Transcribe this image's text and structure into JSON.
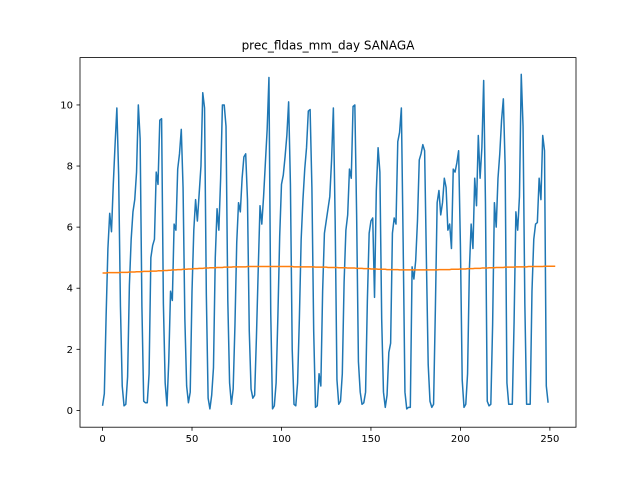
{
  "chart_data": {
    "type": "line",
    "title": "prec_fldas_mm_day SANAGA",
    "xlabel": "",
    "ylabel": "",
    "xlim": [
      -12.6,
      264.6
    ],
    "ylim": [
      -0.55,
      11.55
    ],
    "xticks": [
      0,
      50,
      100,
      150,
      200,
      250
    ],
    "yticks": [
      0,
      2,
      4,
      6,
      8,
      10
    ],
    "grid": false,
    "series": [
      {
        "color": "#1f77b4",
        "values": [
          0.15,
          0.55,
          3.1,
          5.3,
          6.45,
          5.85,
          7.4,
          8.7,
          9.9,
          7.7,
          3.4,
          0.8,
          0.15,
          0.2,
          1.1,
          4.1,
          5.6,
          6.5,
          6.9,
          7.8,
          10.0,
          8.9,
          3.4,
          0.3,
          0.25,
          0.25,
          1.2,
          5.0,
          5.4,
          5.6,
          7.8,
          7.4,
          9.5,
          9.55,
          3.5,
          0.9,
          0.15,
          1.6,
          3.9,
          3.6,
          6.1,
          5.9,
          7.9,
          8.4,
          9.2,
          7.3,
          3.0,
          0.8,
          0.25,
          0.6,
          3.9,
          5.9,
          6.9,
          6.2,
          7.1,
          8.0,
          10.4,
          9.9,
          3.8,
          0.4,
          0.05,
          0.5,
          1.4,
          5.0,
          6.6,
          5.9,
          7.6,
          10.0,
          10.0,
          9.3,
          3.6,
          0.9,
          0.2,
          0.7,
          2.8,
          5.5,
          6.8,
          6.5,
          7.6,
          8.3,
          8.4,
          6.9,
          2.6,
          0.7,
          0.4,
          0.5,
          2.4,
          4.6,
          6.7,
          6.1,
          7.0,
          8.1,
          9.2,
          10.9,
          3.2,
          0.05,
          0.15,
          0.9,
          3.1,
          5.7,
          7.4,
          7.7,
          8.3,
          9.0,
          10.1,
          7.4,
          2.0,
          0.2,
          0.15,
          0.9,
          3.0,
          5.6,
          6.9,
          7.9,
          8.6,
          9.8,
          9.85,
          7.3,
          2.6,
          0.1,
          0.15,
          1.2,
          0.8,
          3.9,
          5.8,
          6.2,
          6.6,
          7.0,
          8.2,
          9.9,
          6.2,
          1.0,
          0.2,
          0.3,
          1.2,
          4.2,
          5.9,
          6.4,
          7.9,
          7.6,
          9.95,
          10.0,
          6.4,
          1.6,
          0.6,
          0.2,
          0.25,
          0.6,
          3.6,
          5.8,
          6.2,
          6.3,
          3.7,
          7.2,
          8.6,
          7.8,
          3.0,
          0.6,
          0.1,
          0.5,
          1.9,
          2.2,
          5.8,
          6.3,
          6.1,
          8.8,
          9.1,
          9.9,
          5.5,
          0.6,
          0.05,
          0.1,
          0.1,
          4.7,
          4.3,
          4.9,
          6.2,
          8.2,
          8.4,
          8.7,
          8.5,
          4.9,
          1.5,
          0.3,
          0.1,
          0.2,
          3.3,
          6.8,
          7.2,
          6.4,
          6.8,
          7.6,
          7.3,
          5.9,
          6.1,
          5.3,
          7.9,
          7.8,
          8.1,
          8.5,
          5.4,
          1.0,
          0.1,
          0.2,
          1.2,
          4.6,
          6.1,
          5.3,
          7.6,
          6.7,
          9.0,
          7.6,
          8.6,
          10.8,
          6.8,
          0.3,
          0.15,
          0.2,
          2.8,
          6.8,
          6.0,
          7.6,
          8.4,
          9.5,
          10.2,
          8.0,
          0.9,
          0.2,
          0.2,
          0.2,
          2.9,
          6.5,
          5.9,
          7.0,
          11.0,
          9.3,
          3.5,
          0.2,
          0.2,
          0.2,
          3.9,
          5.6,
          6.1,
          6.15,
          7.6,
          6.9,
          9.0,
          8.5,
          0.8,
          0.25
        ]
      },
      {
        "color": "#ff7f0e",
        "values": [
          4.5,
          4.5,
          4.5,
          4.51,
          4.51,
          4.51,
          4.51,
          4.51,
          4.51,
          4.51,
          4.52,
          4.52,
          4.52,
          4.52,
          4.52,
          4.53,
          4.53,
          4.53,
          4.53,
          4.54,
          4.54,
          4.54,
          4.54,
          4.55,
          4.55,
          4.55,
          4.55,
          4.56,
          4.56,
          4.56,
          4.56,
          4.57,
          4.57,
          4.57,
          4.58,
          4.58,
          4.58,
          4.59,
          4.59,
          4.6,
          4.6,
          4.6,
          4.61,
          4.61,
          4.61,
          4.62,
          4.62,
          4.62,
          4.63,
          4.63,
          4.63,
          4.64,
          4.64,
          4.64,
          4.65,
          4.65,
          4.65,
          4.66,
          4.66,
          4.66,
          4.67,
          4.67,
          4.67,
          4.67,
          4.68,
          4.68,
          4.68,
          4.68,
          4.69,
          4.69,
          4.69,
          4.69,
          4.69,
          4.7,
          4.7,
          4.7,
          4.7,
          4.7,
          4.7,
          4.7,
          4.7,
          4.71,
          4.71,
          4.71,
          4.71,
          4.71,
          4.71,
          4.71,
          4.71,
          4.71,
          4.71,
          4.71,
          4.71,
          4.71,
          4.71,
          4.71,
          4.71,
          4.71,
          4.71,
          4.71,
          4.71,
          4.71,
          4.71,
          4.71,
          4.71,
          4.71,
          4.71,
          4.7,
          4.7,
          4.7,
          4.7,
          4.7,
          4.7,
          4.7,
          4.7,
          4.7,
          4.7,
          4.7,
          4.7,
          4.69,
          4.69,
          4.69,
          4.69,
          4.69,
          4.69,
          4.69,
          4.68,
          4.68,
          4.68,
          4.68,
          4.68,
          4.68,
          4.67,
          4.67,
          4.67,
          4.67,
          4.67,
          4.66,
          4.66,
          4.66,
          4.66,
          4.66,
          4.65,
          4.65,
          4.65,
          4.65,
          4.64,
          4.64,
          4.64,
          4.64,
          4.63,
          4.63,
          4.63,
          4.63,
          4.62,
          4.62,
          4.62,
          4.62,
          4.62,
          4.61,
          4.61,
          4.61,
          4.61,
          4.61,
          4.61,
          4.61,
          4.6,
          4.6,
          4.6,
          4.6,
          4.6,
          4.6,
          4.6,
          4.6,
          4.6,
          4.6,
          4.6,
          4.6,
          4.6,
          4.6,
          4.6,
          4.6,
          4.6,
          4.6,
          4.6,
          4.6,
          4.6,
          4.6,
          4.61,
          4.61,
          4.61,
          4.61,
          4.61,
          4.61,
          4.61,
          4.62,
          4.62,
          4.62,
          4.62,
          4.62,
          4.63,
          4.63,
          4.63,
          4.63,
          4.64,
          4.64,
          4.64,
          4.64,
          4.65,
          4.65,
          4.65,
          4.65,
          4.66,
          4.66,
          4.66,
          4.66,
          4.67,
          4.67,
          4.67,
          4.67,
          4.68,
          4.68,
          4.68,
          4.68,
          4.68,
          4.69,
          4.69,
          4.69,
          4.69,
          4.69,
          4.69,
          4.7,
          4.7,
          4.7,
          4.7,
          4.7,
          4.7,
          4.7,
          4.71,
          4.71,
          4.71,
          4.71,
          4.71,
          4.71,
          4.71,
          4.71,
          4.71,
          4.72,
          4.72,
          4.72,
          4.72,
          4.72,
          4.72,
          4.72
        ]
      }
    ]
  }
}
